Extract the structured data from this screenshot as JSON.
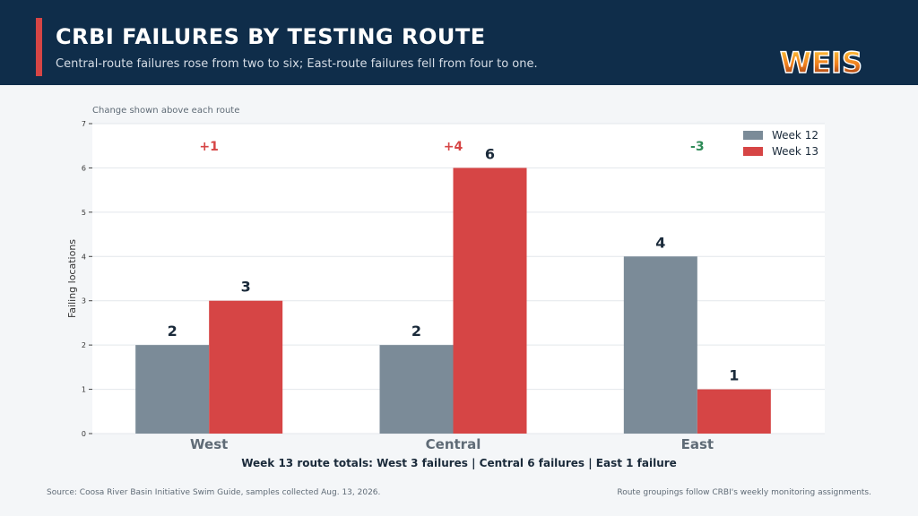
{
  "header": {
    "title": "CRBI FAILURES BY TESTING ROUTE",
    "subtitle": "Central-route failures rose from two to six; East-route failures fell from four to one.",
    "logo_text": "WEIS"
  },
  "note": "Change shown above each route",
  "chart_data": {
    "type": "bar",
    "categories": [
      "West",
      "Central",
      "East"
    ],
    "series": [
      {
        "name": "Week 12",
        "values": [
          2,
          2,
          4
        ],
        "color": "#7b8b98"
      },
      {
        "name": "Week 13",
        "values": [
          3,
          6,
          1
        ],
        "color": "#d64545"
      }
    ],
    "changes": [
      "+1",
      "+4",
      "-3"
    ],
    "change_colors": [
      "#d64545",
      "#d64545",
      "#2e8b57"
    ],
    "ylabel": "Failing locations",
    "xlabel": "",
    "ylim": [
      0,
      7
    ],
    "yticks": [
      0,
      1,
      2,
      3,
      4,
      5,
      6,
      7
    ],
    "grid": true,
    "legend_position": "top-right"
  },
  "totals": "Week 13 route totals: West 3 failures  |  Central 6 failures  |  East 1 failure",
  "footer": {
    "source": "Source: Coosa River Basin Initiative Swim Guide, samples collected Aug. 13, 2026.",
    "note": "Route groupings follow CRBI's weekly monitoring assignments."
  }
}
